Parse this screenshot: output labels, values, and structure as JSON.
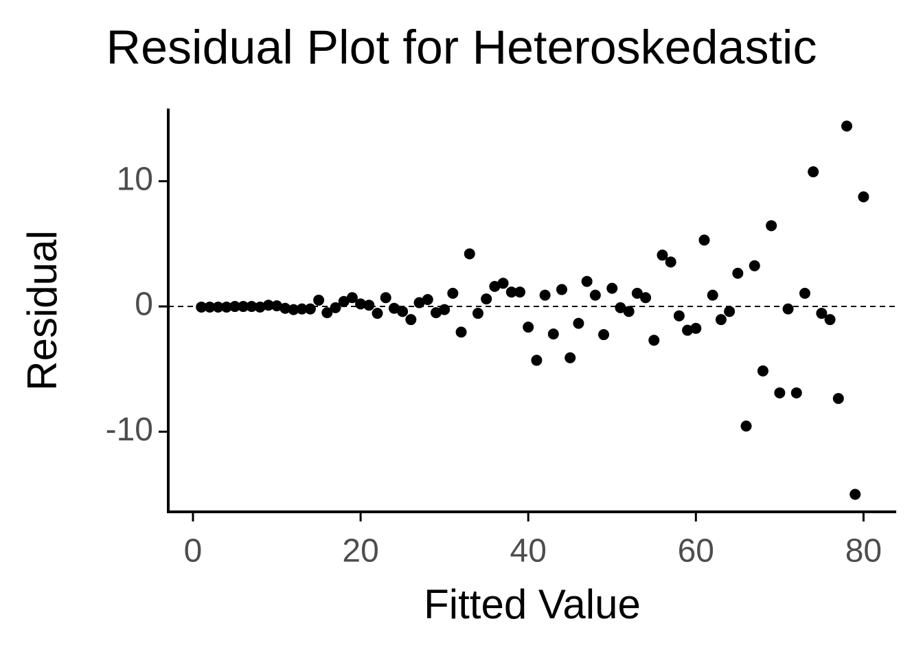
{
  "chart_data": {
    "type": "scatter",
    "title": "Residual Plot for Heteroskedastic",
    "x_label": "Fitted Value",
    "y_label": "Residual",
    "x": [
      1,
      2,
      3,
      4,
      5,
      6,
      7,
      8,
      9,
      10,
      11,
      12,
      13,
      14,
      15,
      16,
      17,
      18,
      19,
      20,
      21,
      22,
      23,
      24,
      25,
      26,
      27,
      28,
      29,
      30,
      31,
      32,
      33,
      34,
      35,
      36,
      37,
      38,
      39,
      40,
      41,
      42,
      43,
      44,
      45,
      46,
      47,
      48,
      49,
      50,
      51,
      52,
      53,
      54,
      55,
      56,
      57,
      58,
      59,
      60,
      61,
      62,
      63,
      64,
      65,
      66,
      67,
      68,
      69,
      70,
      71,
      72,
      73,
      74,
      75,
      76,
      77,
      78,
      79,
      80
    ],
    "values": [
      -0.05,
      -0.05,
      -0.05,
      -0.05,
      0,
      0,
      0,
      -0.05,
      0.1,
      0.05,
      -0.15,
      -0.25,
      -0.2,
      -0.2,
      0.5,
      -0.5,
      -0.1,
      0.4,
      0.7,
      0.2,
      0.1,
      -0.55,
      0.7,
      -0.15,
      -0.4,
      -1.05,
      0.3,
      0.55,
      -0.5,
      -0.25,
      1.05,
      -2.05,
      4.2,
      -0.55,
      0.6,
      1.6,
      1.85,
      1.15,
      1.15,
      -1.65,
      -4.3,
      0.9,
      -2.2,
      1.35,
      -4.1,
      -1.35,
      2.0,
      0.9,
      -2.25,
      1.45,
      -0.1,
      -0.4,
      1.05,
      0.7,
      -2.7,
      4.1,
      3.55,
      -0.75,
      -1.9,
      -1.75,
      5.3,
      0.9,
      -1.05,
      -0.4,
      2.65,
      -9.55,
      3.25,
      -5.15,
      6.45,
      -6.9,
      -0.2,
      -6.9,
      1.05,
      10.75,
      -0.55,
      -1.05,
      -7.35,
      14.4,
      -15.0,
      8.75
    ],
    "color": "#000000",
    "hline": 0,
    "xlim": [
      -2.95,
      83.9
    ],
    "ylim": [
      -16.4,
      15.8
    ],
    "xticks": [
      0,
      20,
      40,
      60,
      80
    ],
    "yticks": [
      -10,
      0,
      10
    ]
  }
}
